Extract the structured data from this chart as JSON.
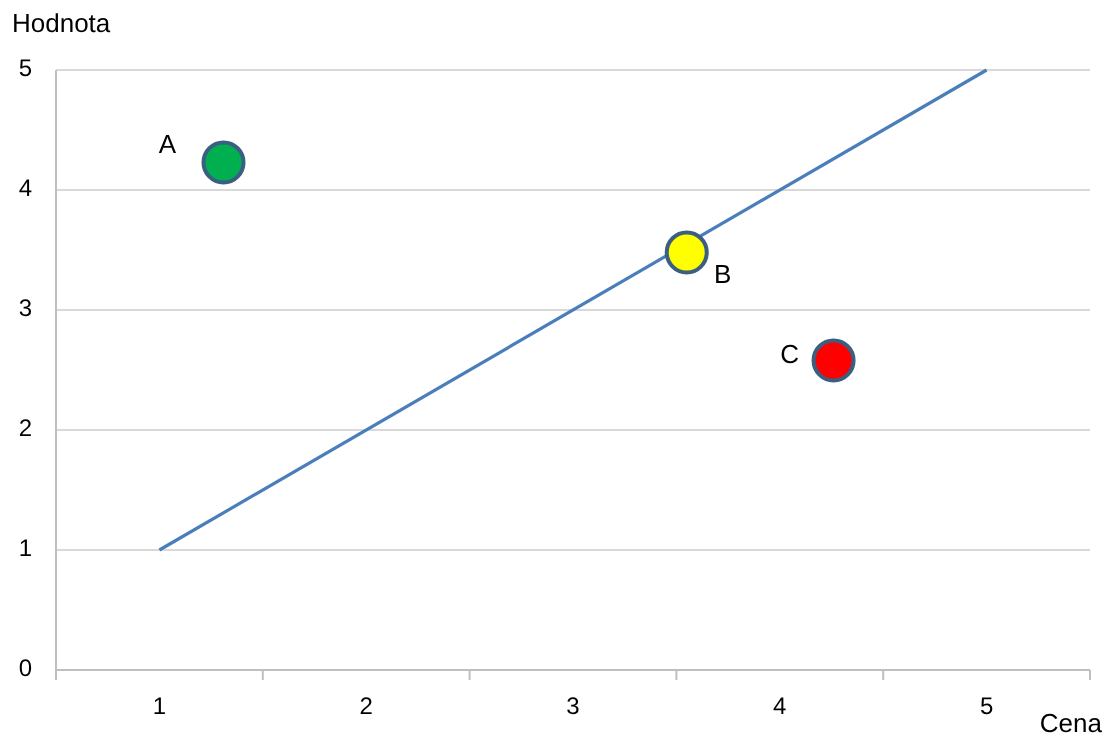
{
  "chart_data": {
    "type": "scatter",
    "xlabel": "Cena",
    "ylabel": "Hodnota",
    "xlim": [
      0.5,
      5.5
    ],
    "xticks": [
      {
        "value": 0.5,
        "label": null
      },
      1,
      {
        "value": 1.5,
        "label": null
      },
      2,
      {
        "value": 2.5,
        "label": null
      },
      3,
      {
        "value": 3.5,
        "label": null
      },
      4,
      {
        "value": 4.5,
        "label": null
      },
      5,
      {
        "value": 5.5,
        "label": null
      }
    ],
    "ylim": [
      0,
      5
    ],
    "yticks": [
      0,
      1,
      2,
      3,
      4,
      5
    ],
    "grid": "y",
    "marker": "circle",
    "series": [
      {
        "type": "line",
        "x": [
          1,
          5
        ],
        "values": [
          1,
          5
        ],
        "color": "#4a7ebb",
        "marker": "none"
      },
      {
        "name": "A",
        "x": [
          1.31
        ],
        "values": [
          4.23
        ],
        "color": "#00b050"
      },
      {
        "name": "B",
        "x": [
          3.55
        ],
        "values": [
          3.48
        ],
        "color": "#ffff00"
      },
      {
        "name": "C",
        "x": [
          4.26
        ],
        "values": [
          2.58
        ],
        "color": "#ff0000"
      }
    ]
  }
}
